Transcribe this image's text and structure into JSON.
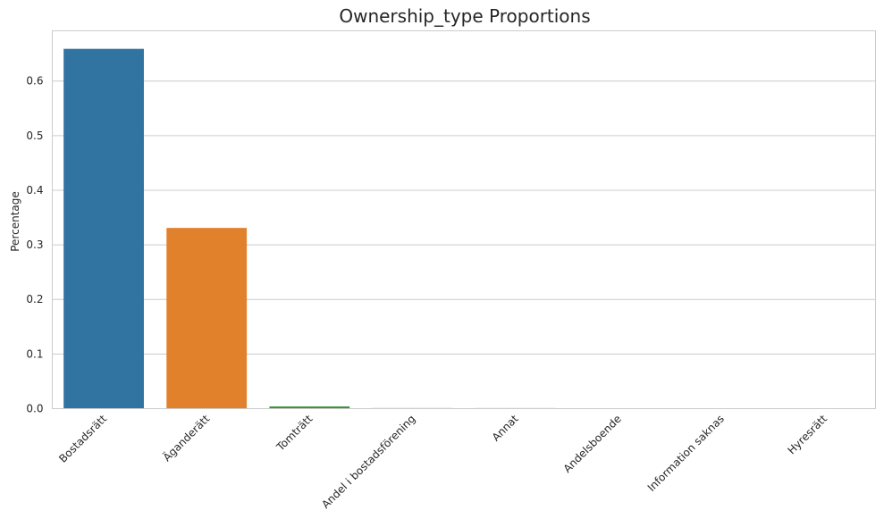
{
  "chart_data": {
    "type": "bar",
    "title": "Ownership_type Proportions",
    "xlabel": "",
    "ylabel": "Percentage",
    "categories": [
      "Bostadsrätt",
      "Äganderätt",
      "Tomträtt",
      "Andel i bostadsförening",
      "Annat",
      "Andelsboende",
      "Information saknas",
      "Hyresrätt"
    ],
    "values": [
      0.659,
      0.331,
      0.004,
      0.001,
      0.001,
      0.0005,
      0.0003,
      0.0002
    ],
    "colors": [
      "#3274a1",
      "#e1812c",
      "#3a923a",
      "#c03d3e",
      "#9372b2",
      "#845b53",
      "#d684bd",
      "#7f7f7f"
    ],
    "ylim": [
      0,
      0.692
    ],
    "yticks": [
      "0.0",
      "0.1",
      "0.2",
      "0.3",
      "0.4",
      "0.5",
      "0.6"
    ],
    "grid": true,
    "style": {
      "grid_color": "#cccccc",
      "spine_color": "#cccccc",
      "text_color": "#262626"
    }
  }
}
